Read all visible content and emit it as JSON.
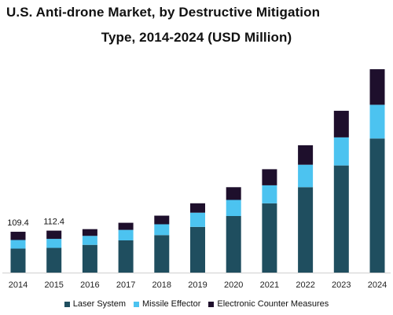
{
  "chart_data": {
    "type": "bar",
    "stacked": true,
    "title_lines": [
      "U.S. Anti-drone Market, by Destructive Mitigation",
      "Type, 2014-2024 (USD Million)"
    ],
    "categories": [
      "2014",
      "2015",
      "2016",
      "2017",
      "2018",
      "2019",
      "2020",
      "2021",
      "2022",
      "2023",
      "2024"
    ],
    "series": [
      {
        "name": "Laser System",
        "color": "#1f4e5f",
        "values": [
          64,
          66,
          74,
          86,
          100,
          122,
          151,
          185,
          228,
          286,
          358
        ]
      },
      {
        "name": "Missile Effector",
        "color": "#4cc3f0",
        "values": [
          23,
          24,
          24,
          28,
          29,
          38,
          43,
          48,
          60,
          75,
          90
        ]
      },
      {
        "name": "Electronic Counter Measures",
        "color": "#1e0f2c",
        "values": [
          22,
          22,
          18,
          19,
          23,
          25,
          34,
          43,
          52,
          71,
          95
        ]
      }
    ],
    "data_labels": [
      {
        "category": "2014",
        "text": "109.4"
      },
      {
        "category": "2015",
        "text": "112.4"
      }
    ],
    "ylim": [
      0,
      560
    ],
    "grid": false,
    "legend_position": "bottom"
  }
}
